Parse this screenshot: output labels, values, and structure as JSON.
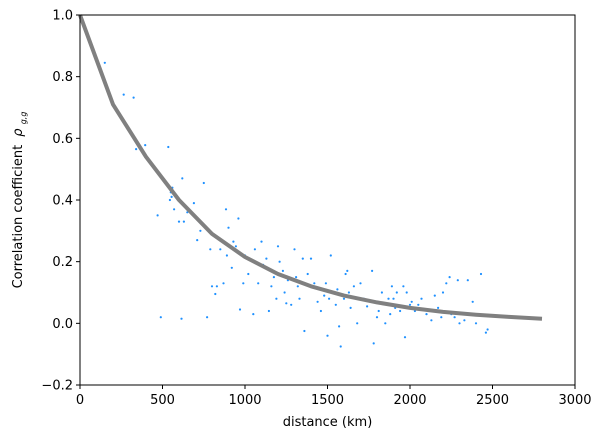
{
  "chart_data": {
    "type": "scatter",
    "title": "",
    "xlabel": "distance (km)",
    "ylabel": "Correlation coefficient ρ_{g_t^{R_i}, g_t^{R_j}}",
    "ylabel_plain": "Correlation coefficient",
    "ylabel_symbol": "ρ",
    "xlim": [
      0,
      3000
    ],
    "ylim": [
      -0.2,
      1.0
    ],
    "xticks": [
      0,
      500,
      1000,
      1500,
      2000,
      2500,
      3000
    ],
    "xtick_labels": [
      "0",
      "500",
      "1000",
      "1500",
      "2000",
      "2500",
      "3000"
    ],
    "yticks": [
      -0.2,
      0.0,
      0.2,
      0.4,
      0.6,
      0.8,
      1.0
    ],
    "ytick_labels": [
      "−0.2",
      "0.0",
      "0.2",
      "0.4",
      "0.6",
      "0.8",
      "1.0"
    ],
    "grid": false,
    "legend": null,
    "colors": {
      "scatter": "#1e90ff",
      "fit_line": "#808080",
      "axes": "#000000"
    },
    "series": [
      {
        "name": "fit",
        "kind": "line",
        "x": [
          0,
          200,
          400,
          600,
          800,
          1000,
          1200,
          1400,
          1600,
          1800,
          2000,
          2200,
          2400,
          2600,
          2800
        ],
        "y": [
          1.0,
          0.71,
          0.54,
          0.4,
          0.29,
          0.215,
          0.16,
          0.12,
          0.09,
          0.068,
          0.05,
          0.037,
          0.028,
          0.021,
          0.015
        ]
      },
      {
        "name": "observations",
        "kind": "scatter",
        "points": [
          [
            150,
            0.845
          ],
          [
            210,
            0.705
          ],
          [
            265,
            0.742
          ],
          [
            325,
            0.732
          ],
          [
            340,
            0.565
          ],
          [
            395,
            0.578
          ],
          [
            470,
            0.35
          ],
          [
            490,
            0.02
          ],
          [
            535,
            0.572
          ],
          [
            545,
            0.4
          ],
          [
            550,
            0.425
          ],
          [
            555,
            0.41
          ],
          [
            560,
            0.44
          ],
          [
            570,
            0.37
          ],
          [
            600,
            0.33
          ],
          [
            615,
            0.015
          ],
          [
            620,
            0.47
          ],
          [
            630,
            0.33
          ],
          [
            650,
            0.36
          ],
          [
            690,
            0.39
          ],
          [
            710,
            0.27
          ],
          [
            730,
            0.3
          ],
          [
            750,
            0.455
          ],
          [
            770,
            0.02
          ],
          [
            790,
            0.24
          ],
          [
            800,
            0.12
          ],
          [
            820,
            0.095
          ],
          [
            830,
            0.12
          ],
          [
            850,
            0.24
          ],
          [
            870,
            0.13
          ],
          [
            885,
            0.37
          ],
          [
            890,
            0.22
          ],
          [
            900,
            0.31
          ],
          [
            920,
            0.18
          ],
          [
            930,
            0.265
          ],
          [
            945,
            0.25
          ],
          [
            960,
            0.34
          ],
          [
            970,
            0.045
          ],
          [
            990,
            0.13
          ],
          [
            1000,
            0.22
          ],
          [
            1020,
            0.16
          ],
          [
            1050,
            0.03
          ],
          [
            1060,
            0.24
          ],
          [
            1080,
            0.13
          ],
          [
            1100,
            0.265
          ],
          [
            1110,
            0.19
          ],
          [
            1130,
            0.21
          ],
          [
            1145,
            0.04
          ],
          [
            1160,
            0.12
          ],
          [
            1175,
            0.15
          ],
          [
            1190,
            0.08
          ],
          [
            1200,
            0.25
          ],
          [
            1210,
            0.2
          ],
          [
            1230,
            0.17
          ],
          [
            1240,
            0.1
          ],
          [
            1250,
            0.065
          ],
          [
            1260,
            0.14
          ],
          [
            1280,
            0.06
          ],
          [
            1300,
            0.24
          ],
          [
            1310,
            0.15
          ],
          [
            1320,
            0.12
          ],
          [
            1330,
            0.08
          ],
          [
            1350,
            0.21
          ],
          [
            1360,
            -0.025
          ],
          [
            1380,
            0.16
          ],
          [
            1400,
            0.21
          ],
          [
            1410,
            0.12
          ],
          [
            1420,
            0.13
          ],
          [
            1440,
            0.07
          ],
          [
            1460,
            0.04
          ],
          [
            1480,
            0.09
          ],
          [
            1490,
            0.13
          ],
          [
            1500,
            -0.04
          ],
          [
            1510,
            0.08
          ],
          [
            1520,
            0.22
          ],
          [
            1540,
            0.1
          ],
          [
            1550,
            0.06
          ],
          [
            1560,
            0.11
          ],
          [
            1570,
            -0.01
          ],
          [
            1580,
            -0.075
          ],
          [
            1600,
            0.08
          ],
          [
            1610,
            0.16
          ],
          [
            1620,
            0.17
          ],
          [
            1630,
            0.1
          ],
          [
            1640,
            0.05
          ],
          [
            1660,
            0.12
          ],
          [
            1680,
            0.0
          ],
          [
            1700,
            0.13
          ],
          [
            1720,
            0.08
          ],
          [
            1740,
            0.055
          ],
          [
            1760,
            0.07
          ],
          [
            1770,
            0.17
          ],
          [
            1780,
            -0.065
          ],
          [
            1800,
            0.02
          ],
          [
            1810,
            0.04
          ],
          [
            1830,
            0.1
          ],
          [
            1850,
            0.0
          ],
          [
            1870,
            0.08
          ],
          [
            1880,
            0.03
          ],
          [
            1890,
            0.12
          ],
          [
            1900,
            0.08
          ],
          [
            1910,
            0.05
          ],
          [
            1920,
            0.1
          ],
          [
            1940,
            0.04
          ],
          [
            1960,
            0.12
          ],
          [
            1970,
            -0.045
          ],
          [
            1980,
            0.1
          ],
          [
            2000,
            0.06
          ],
          [
            2010,
            0.07
          ],
          [
            2030,
            0.04
          ],
          [
            2050,
            0.06
          ],
          [
            2070,
            0.08
          ],
          [
            2100,
            0.03
          ],
          [
            2130,
            0.01
          ],
          [
            2150,
            0.09
          ],
          [
            2170,
            0.05
          ],
          [
            2190,
            0.02
          ],
          [
            2200,
            0.1
          ],
          [
            2220,
            0.13
          ],
          [
            2240,
            0.15
          ],
          [
            2250,
            0.03
          ],
          [
            2270,
            0.02
          ],
          [
            2290,
            0.14
          ],
          [
            2300,
            0.0
          ],
          [
            2330,
            0.01
          ],
          [
            2350,
            0.14
          ],
          [
            2380,
            0.07
          ],
          [
            2400,
            0.0
          ],
          [
            2430,
            0.16
          ],
          [
            2460,
            -0.03
          ],
          [
            2470,
            -0.02
          ]
        ]
      }
    ]
  }
}
